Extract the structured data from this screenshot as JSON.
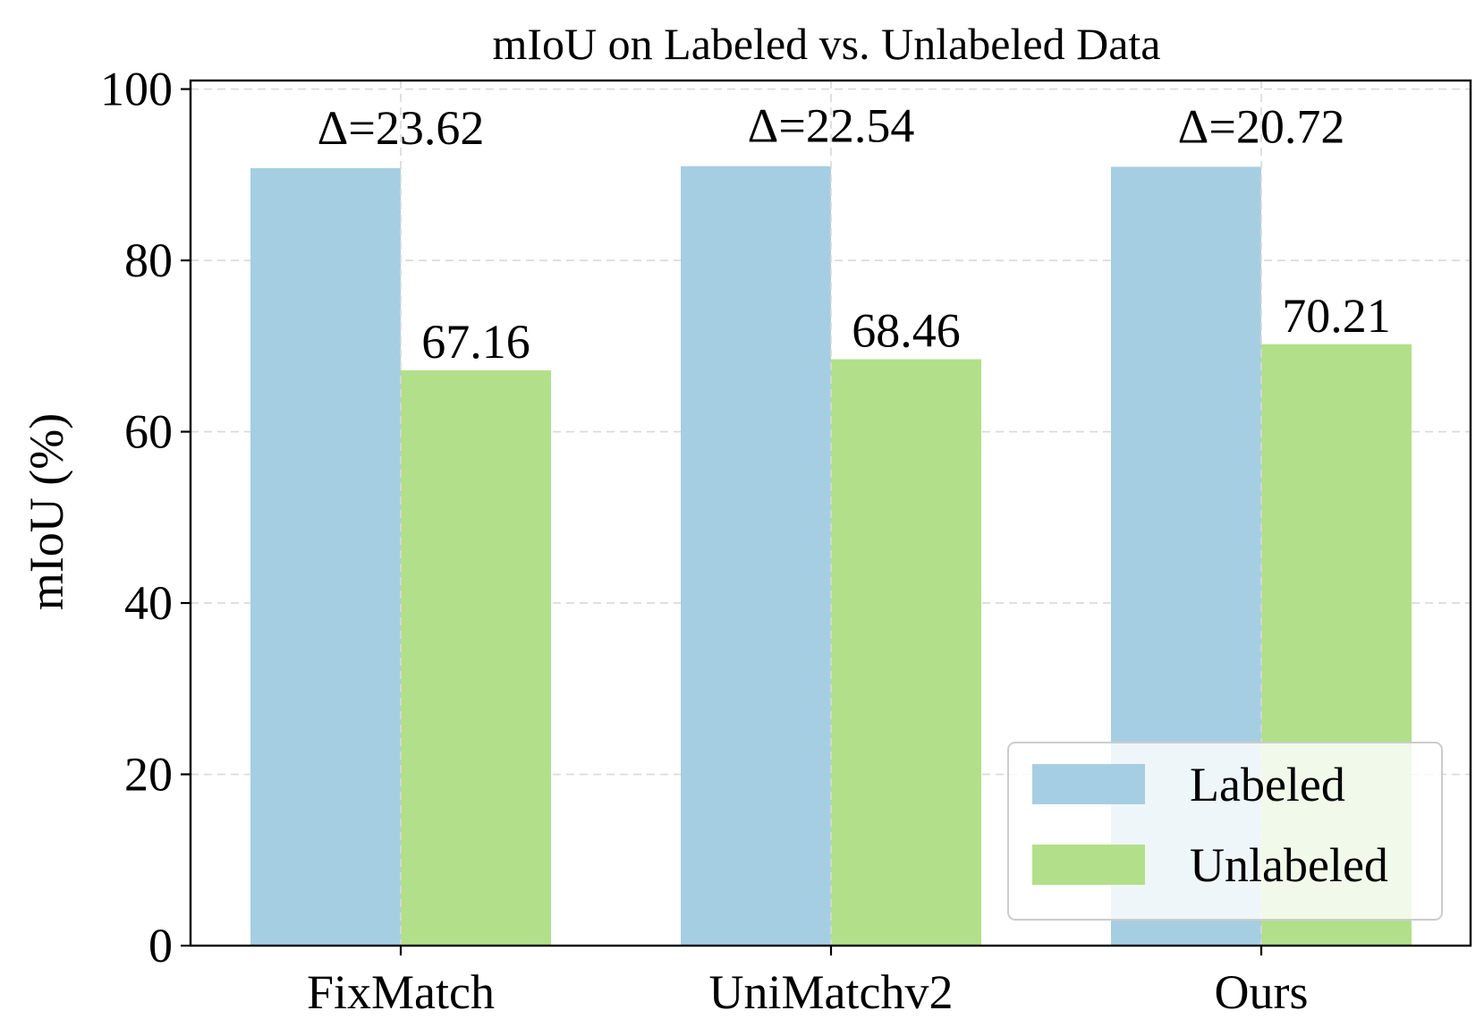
{
  "chart_data": {
    "type": "bar",
    "title": "mIoU on Labeled vs. Unlabeled Data",
    "xlabel": "",
    "ylabel": "mIoU (%)",
    "categories": [
      "FixMatch",
      "UniMatchv2",
      "Ours"
    ],
    "series": [
      {
        "name": "Labeled",
        "color": "#a6cee3",
        "values": [
          90.78,
          91.0,
          90.93
        ]
      },
      {
        "name": "Unlabeled",
        "color": "#b2df8a",
        "values": [
          67.16,
          68.46,
          70.21
        ]
      }
    ],
    "value_labels": [
      "67.16",
      "68.46",
      "70.21"
    ],
    "delta_labels": [
      "Δ=23.62",
      "Δ=22.54",
      "Δ=20.72"
    ],
    "ylim": [
      0,
      101
    ],
    "yticks": [
      0,
      20,
      40,
      60,
      80,
      100
    ],
    "grid": true,
    "legend_position": "bottom-right"
  }
}
